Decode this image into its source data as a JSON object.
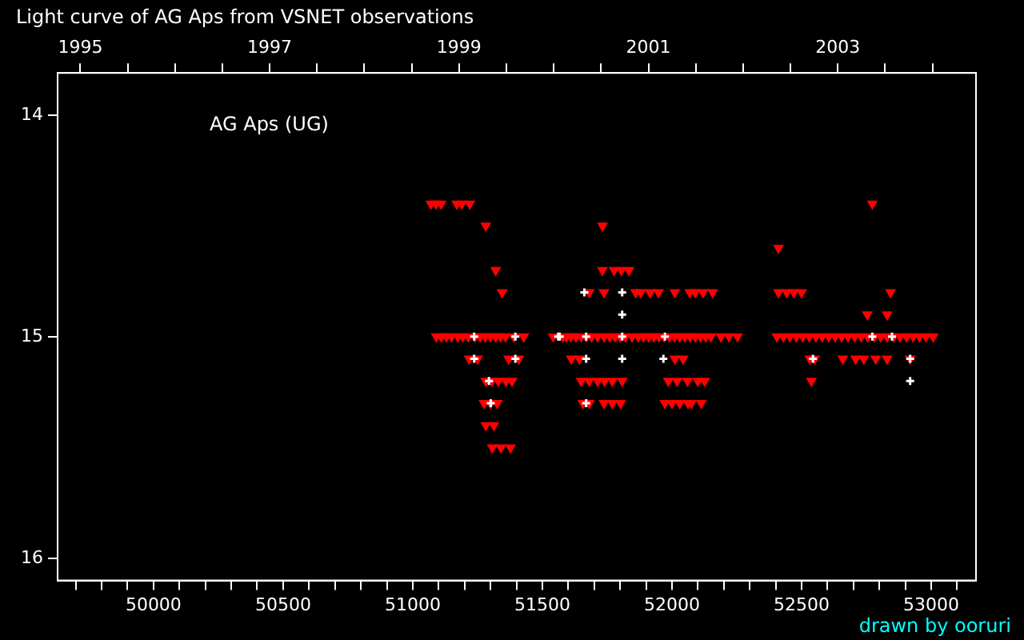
{
  "chart_data": {
    "type": "scatter",
    "title": "Light curve of AG Aps from VSNET observations",
    "annotations": [
      "AG Aps (UG)",
      "drawn by ooruri"
    ],
    "xlim": [
      49630,
      53173
    ],
    "xticks": [
      {
        "value": 49700,
        "label": null
      },
      {
        "value": 49800,
        "label": null
      },
      {
        "value": 49900,
        "label": null
      },
      50000,
      {
        "value": 50100,
        "label": null
      },
      {
        "value": 50200,
        "label": null
      },
      {
        "value": 50300,
        "label": null
      },
      {
        "value": 50400,
        "label": null
      },
      50500,
      {
        "value": 50600,
        "label": null
      },
      {
        "value": 50700,
        "label": null
      },
      {
        "value": 50800,
        "label": null
      },
      {
        "value": 50900,
        "label": null
      },
      51000,
      {
        "value": 51100,
        "label": null
      },
      {
        "value": 51200,
        "label": null
      },
      {
        "value": 51300,
        "label": null
      },
      {
        "value": 51400,
        "label": null
      },
      51500,
      {
        "value": 51600,
        "label": null
      },
      {
        "value": 51700,
        "label": null
      },
      {
        "value": 51800,
        "label": null
      },
      {
        "value": 51900,
        "label": null
      },
      52000,
      {
        "value": 52100,
        "label": null
      },
      {
        "value": 52200,
        "label": null
      },
      {
        "value": 52300,
        "label": null
      },
      {
        "value": 52400,
        "label": null
      },
      52500,
      {
        "value": 52600,
        "label": null
      },
      {
        "value": 52700,
        "label": null
      },
      {
        "value": 52800,
        "label": null
      },
      {
        "value": 52900,
        "label": null
      },
      53000,
      {
        "value": 53100,
        "label": null
      }
    ],
    "x2lim": [
      1994.76,
      2004.46
    ],
    "x2ticks": [
      1995,
      {
        "value": 1995.5,
        "label": null
      },
      {
        "value": 1996,
        "label": null
      },
      {
        "value": 1996.5,
        "label": null
      },
      1997,
      {
        "value": 1997.5,
        "label": null
      },
      {
        "value": 1998,
        "label": null
      },
      {
        "value": 1998.5,
        "label": null
      },
      1999,
      {
        "value": 1999.5,
        "label": null
      },
      {
        "value": 2000,
        "label": null
      },
      {
        "value": 2000.5,
        "label": null
      },
      2001,
      {
        "value": 2001.5,
        "label": null
      },
      {
        "value": 2002,
        "label": null
      },
      {
        "value": 2002.5,
        "label": null
      },
      2003,
      {
        "value": 2003.5,
        "label": null
      },
      {
        "value": 2004,
        "label": null
      }
    ],
    "ylim": [
      16.1,
      13.81
    ],
    "yticks": [
      14,
      15,
      16
    ],
    "grid": false,
    "series": [
      {
        "type": "scatter",
        "marker": "triangle",
        "color": "#ff0000",
        "x": [
          51070,
          51090,
          51110,
          51170,
          51190,
          51220,
          52773,
          51282,
          51732,
          52411,
          51320,
          51732,
          51777,
          51805,
          51834,
          51345,
          51681,
          51738,
          51860,
          51880,
          51916,
          51948,
          52011,
          52069,
          52090,
          52120,
          52157,
          52411,
          52443,
          52470,
          52500,
          52843,
          52754,
          52830,
          51091,
          51110,
          51130,
          51150,
          51174,
          51193,
          51215,
          51240,
          51260,
          51280,
          51300,
          51320,
          51339,
          51358,
          51390,
          51428,
          51542,
          51580,
          51593,
          51610,
          51630,
          51650,
          51670,
          51690,
          51713,
          51738,
          51760,
          51780,
          51800,
          51821,
          51846,
          51870,
          51890,
          51910,
          51930,
          51950,
          51970,
          51990,
          52010,
          52030,
          52050,
          52070,
          52090,
          52110,
          52130,
          52150,
          52189,
          52220,
          52253,
          52405,
          52430,
          52455,
          52480,
          52505,
          52530,
          52555,
          52580,
          52605,
          52630,
          52655,
          52680,
          52705,
          52730,
          52755,
          52780,
          52805,
          52830,
          52855,
          52880,
          52905,
          52930,
          52955,
          52980,
          53008,
          51218,
          51250,
          51370,
          51409,
          51612,
          51643,
          52011,
          52043,
          52532,
          52551,
          52659,
          52709,
          52740,
          52786,
          52830,
          52919,
          51282,
          51305,
          51330,
          51360,
          51383,
          51650,
          51681,
          51713,
          51740,
          51770,
          51808,
          51986,
          52020,
          52060,
          52100,
          52126,
          52538,
          51275,
          51300,
          51326,
          51656,
          51681,
          51738,
          51770,
          51802,
          51973,
          52000,
          52030,
          52062,
          52075,
          52113,
          51282,
          51313,
          51307,
          51340,
          51377
        ],
        "values": [
          14.4,
          14.4,
          14.4,
          14.4,
          14.4,
          14.4,
          14.4,
          14.5,
          14.5,
          14.6,
          14.7,
          14.7,
          14.7,
          14.7,
          14.7,
          14.8,
          14.8,
          14.8,
          14.8,
          14.8,
          14.8,
          14.8,
          14.8,
          14.8,
          14.8,
          14.8,
          14.8,
          14.8,
          14.8,
          14.8,
          14.8,
          14.8,
          14.9,
          14.9,
          15,
          15,
          15,
          15,
          15,
          15,
          15,
          15,
          15,
          15,
          15,
          15,
          15,
          15,
          15,
          15,
          15,
          15,
          15,
          15,
          15,
          15,
          15,
          15,
          15,
          15,
          15,
          15,
          15,
          15,
          15,
          15,
          15,
          15,
          15,
          15,
          15,
          15,
          15,
          15,
          15,
          15,
          15,
          15,
          15,
          15,
          15,
          15,
          15,
          15,
          15,
          15,
          15,
          15,
          15,
          15,
          15,
          15,
          15,
          15,
          15,
          15,
          15,
          15,
          15,
          15,
          15,
          15,
          15,
          15,
          15,
          15,
          15,
          15,
          15.1,
          15.1,
          15.1,
          15.1,
          15.1,
          15.1,
          15.1,
          15.1,
          15.1,
          15.1,
          15.1,
          15.1,
          15.1,
          15.1,
          15.1,
          15.1,
          15.2,
          15.2,
          15.2,
          15.2,
          15.2,
          15.2,
          15.2,
          15.2,
          15.2,
          15.2,
          15.2,
          15.2,
          15.2,
          15.2,
          15.2,
          15.2,
          15.2,
          15.3,
          15.3,
          15.3,
          15.3,
          15.3,
          15.3,
          15.3,
          15.3,
          15.3,
          15.3,
          15.3,
          15.3,
          15.3,
          15.3,
          15.4,
          15.4,
          15.5,
          15.5,
          15.5
        ]
      },
      {
        "type": "scatter",
        "marker": "cross",
        "color": "#ffffff",
        "x": [
          51662,
          51808,
          51808,
          51237,
          51396,
          51561,
          51567,
          51669,
          51808,
          51973,
          52773,
          52849,
          51237,
          51396,
          51669,
          51808,
          51967,
          52544,
          52919,
          51294,
          52919,
          51301,
          51669
        ],
        "values": [
          14.8,
          14.8,
          14.9,
          15,
          15,
          15,
          15,
          15,
          15,
          15,
          15,
          15,
          15.1,
          15.1,
          15.1,
          15.1,
          15.1,
          15.1,
          15.1,
          15.2,
          15.2,
          15.3,
          15.3
        ]
      }
    ]
  }
}
